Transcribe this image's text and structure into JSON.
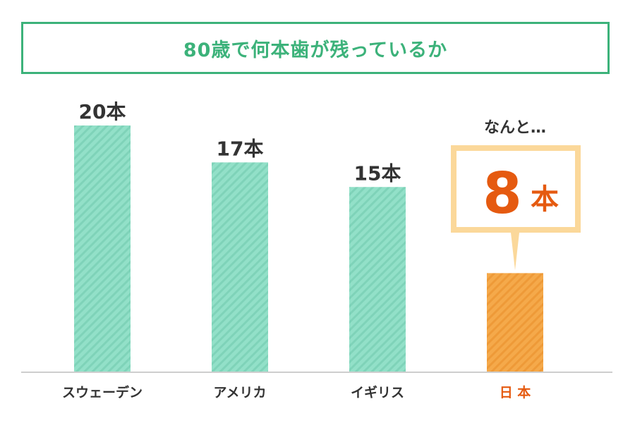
{
  "title": "80歳で何本歯が残っているか",
  "chart_data": {
    "type": "bar",
    "categories": [
      "スウェーデン",
      "アメリカ",
      "イギリス",
      "日 本"
    ],
    "values": [
      20,
      17,
      15,
      8
    ],
    "value_labels": [
      "20本",
      "17本",
      "15本",
      ""
    ],
    "ylim": [
      0,
      20
    ],
    "grid": false,
    "highlight_index": 3,
    "colors": {
      "bar": "#92e0c8",
      "bar_stripe": "#7fd3b9",
      "highlight_bar": "#f5a94a",
      "highlight_stripe": "#ee9a38",
      "highlight_text": "#e55a10",
      "title_green": "#3cb27a",
      "callout_border": "#fbd89a"
    },
    "callout": {
      "prefix": "なんと…",
      "number": "8",
      "unit": "本"
    }
  }
}
